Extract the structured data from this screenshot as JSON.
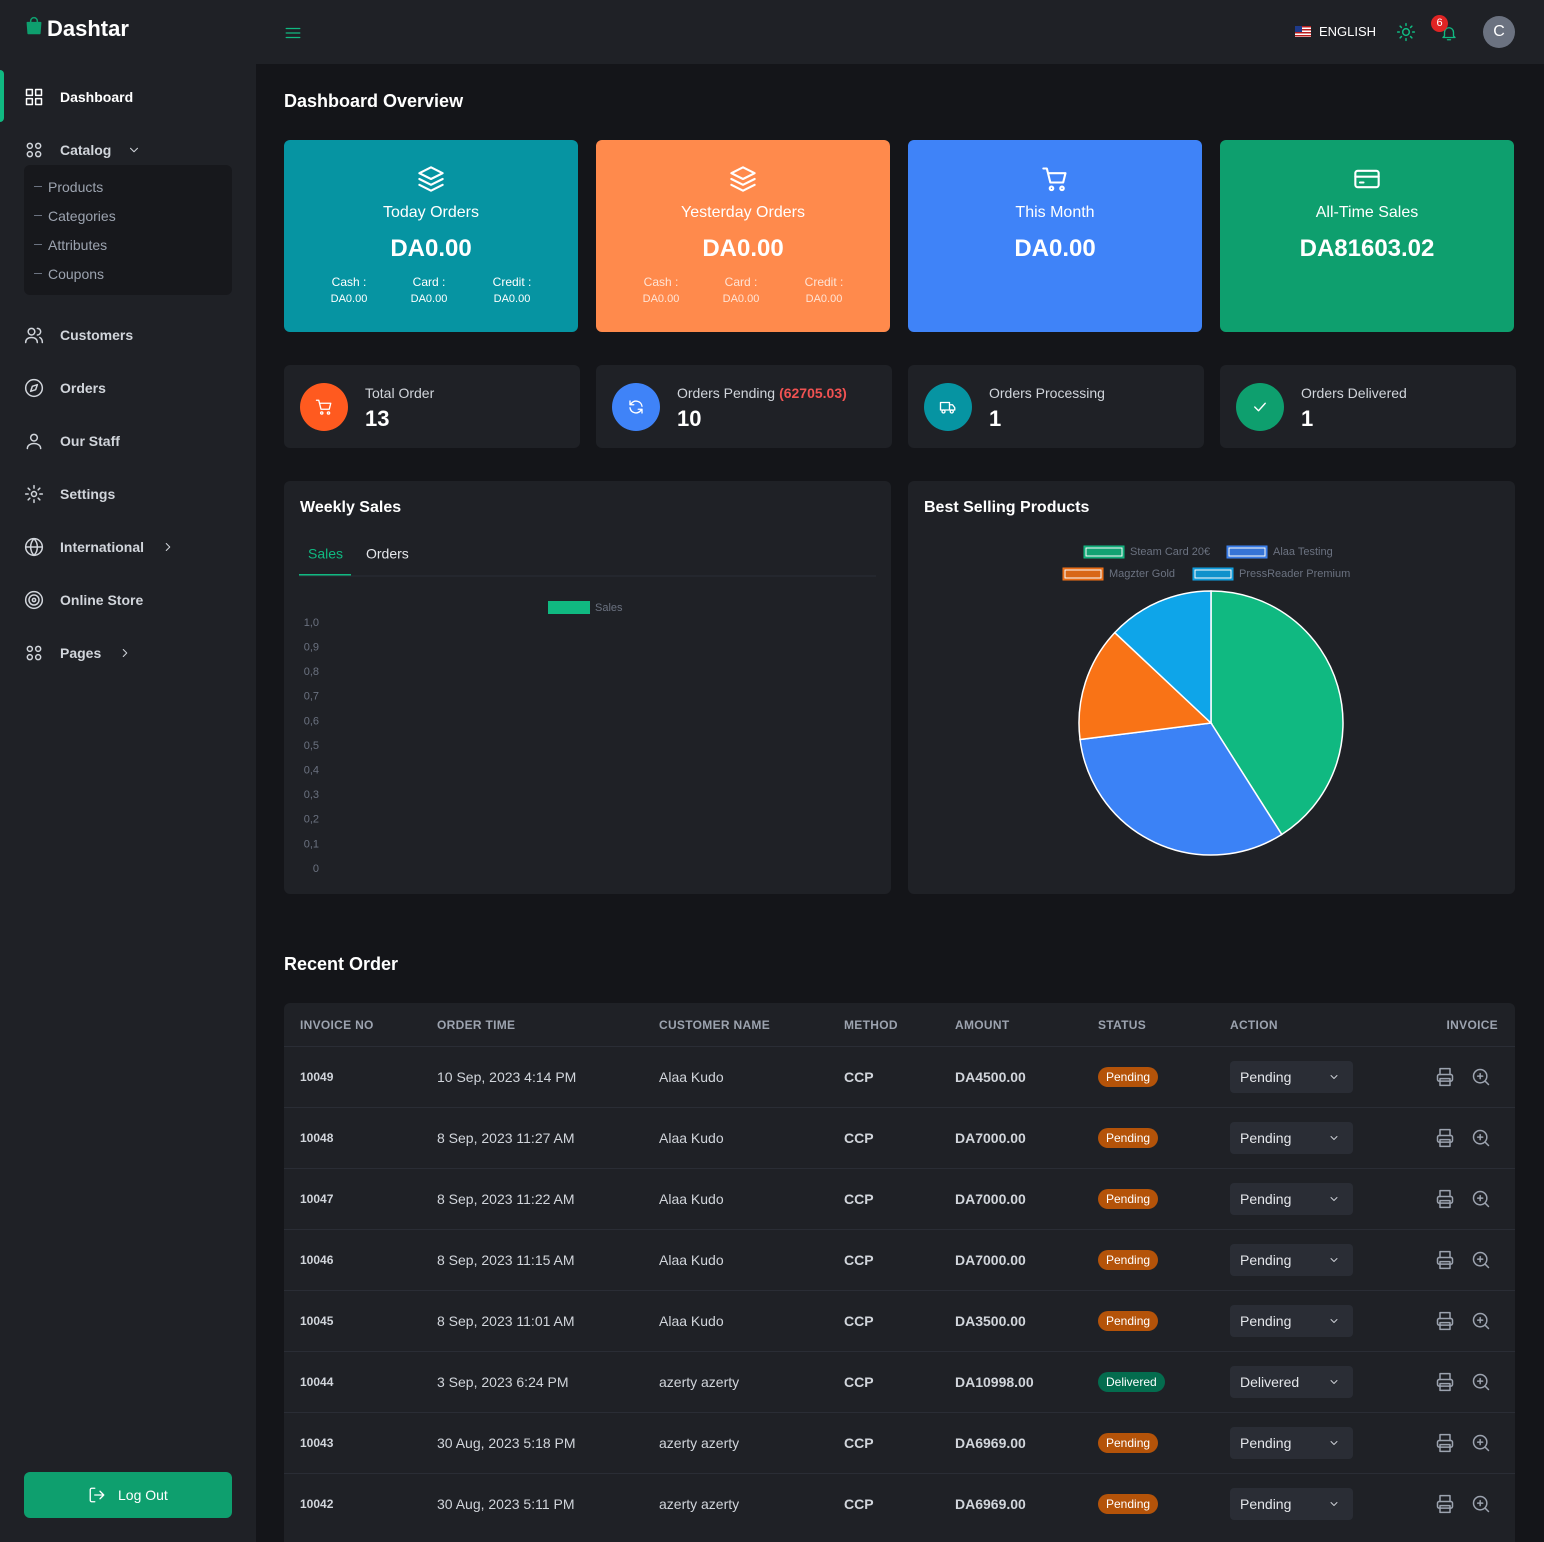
{
  "brand": "Dashtar",
  "header": {
    "language": "ENGLISH",
    "notifications": "6",
    "avatar": "C"
  },
  "sidebar": {
    "items": [
      {
        "label": "Dashboard"
      },
      {
        "label": "Catalog",
        "children": [
          "Products",
          "Categories",
          "Attributes",
          "Coupons"
        ]
      },
      {
        "label": "Customers"
      },
      {
        "label": "Orders"
      },
      {
        "label": "Our Staff"
      },
      {
        "label": "Settings"
      },
      {
        "label": "International"
      },
      {
        "label": "Online Store"
      },
      {
        "label": "Pages"
      }
    ],
    "logout": "Log Out"
  },
  "page_title": "Dashboard Overview",
  "summary_cards": [
    {
      "title": "Today Orders",
      "amount": "DA0.00",
      "color": "#0694a2",
      "breakdown": [
        {
          "label": "Cash :",
          "amount": "DA0.00"
        },
        {
          "label": "Card :",
          "amount": "DA0.00"
        },
        {
          "label": "Credit :",
          "amount": "DA0.00"
        }
      ]
    },
    {
      "title": "Yesterday Orders",
      "amount": "DA0.00",
      "color": "#ff8a4c",
      "breakdown": [
        {
          "label": "Cash :",
          "amount": "DA0.00"
        },
        {
          "label": "Card :",
          "amount": "DA0.00"
        },
        {
          "label": "Credit :",
          "amount": "DA0.00"
        }
      ]
    },
    {
      "title": "This Month",
      "amount": "DA0.00",
      "color": "#3f83f8"
    },
    {
      "title": "All-Time Sales",
      "amount": "DA81603.02",
      "color": "#0e9f6e"
    }
  ],
  "status_cards": [
    {
      "title": "Total Order",
      "value": 13,
      "color": "#ff5a1f"
    },
    {
      "title": "Orders Pending",
      "note": "(62705.03)",
      "value": 10,
      "color": "#3f83f8"
    },
    {
      "title": "Orders Processing",
      "value": 1,
      "color": "#0694a2"
    },
    {
      "title": "Orders Delivered",
      "value": 1,
      "color": "#0e9f6e"
    }
  ],
  "chart_data": [
    {
      "type": "bar",
      "title": "Weekly Sales",
      "tabs": [
        "Sales",
        "Orders"
      ],
      "categories": [],
      "series": [
        {
          "name": "Sales",
          "color": "#10b981",
          "values": []
        }
      ],
      "ylim": [
        0,
        1
      ],
      "yticks": [
        0,
        {
          "value": 0.1,
          "label": "0,1"
        },
        {
          "value": 0.2,
          "label": "0,2"
        },
        {
          "value": 0.3,
          "label": "0,3"
        },
        {
          "value": 0.4,
          "label": "0,4"
        },
        {
          "value": 0.5,
          "label": "0,5"
        },
        {
          "value": 0.6,
          "label": "0,6"
        },
        {
          "value": 0.7,
          "label": "0,7"
        },
        {
          "value": 0.8,
          "label": "0,8"
        },
        {
          "value": 0.9,
          "label": "0,9"
        },
        {
          "value": 1,
          "label": "1,0"
        }
      ],
      "grid": false
    },
    {
      "type": "pie",
      "title": "Best Selling Products",
      "categories": [
        "Steam Card 20€",
        "Alaa Testing",
        "Magzter Gold",
        "PressReader Premium"
      ],
      "values": [
        41,
        32,
        14,
        13
      ],
      "colors": [
        "#10b981",
        "#3b82f6",
        "#f97316",
        "#0ea5e9"
      ]
    }
  ],
  "recent_orders": {
    "title": "Recent Order",
    "columns": [
      "INVOICE NO",
      "ORDER TIME",
      "CUSTOMER NAME",
      "METHOD",
      "AMOUNT",
      "STATUS",
      "ACTION",
      "INVOICE"
    ],
    "rows": [
      [
        "10049",
        "10 Sep, 2023 4:14 PM",
        "Alaa Kudo",
        "CCP",
        "DA4500.00",
        "Pending",
        "Pending"
      ],
      [
        "10048",
        "8 Sep, 2023 11:27 AM",
        "Alaa Kudo",
        "CCP",
        "DA7000.00",
        "Pending",
        "Pending"
      ],
      [
        "10047",
        "8 Sep, 2023 11:22 AM",
        "Alaa Kudo",
        "CCP",
        "DA7000.00",
        "Pending",
        "Pending"
      ],
      [
        "10046",
        "8 Sep, 2023 11:15 AM",
        "Alaa Kudo",
        "CCP",
        "DA7000.00",
        "Pending",
        "Pending"
      ],
      [
        "10045",
        "8 Sep, 2023 11:01 AM",
        "Alaa Kudo",
        "CCP",
        "DA3500.00",
        "Pending",
        "Pending"
      ],
      [
        "10044",
        "3 Sep, 2023 6:24 PM",
        "azerty azerty",
        "CCP",
        "DA10998.00",
        "Delivered",
        "Delivered"
      ],
      [
        "10043",
        "30 Aug, 2023 5:18 PM",
        "azerty azerty",
        "CCP",
        "DA6969.00",
        "Pending",
        "Pending"
      ],
      [
        "10042",
        "30 Aug, 2023 5:11 PM",
        "azerty azerty",
        "CCP",
        "DA6969.00",
        "Pending",
        "Pending"
      ]
    ]
  }
}
